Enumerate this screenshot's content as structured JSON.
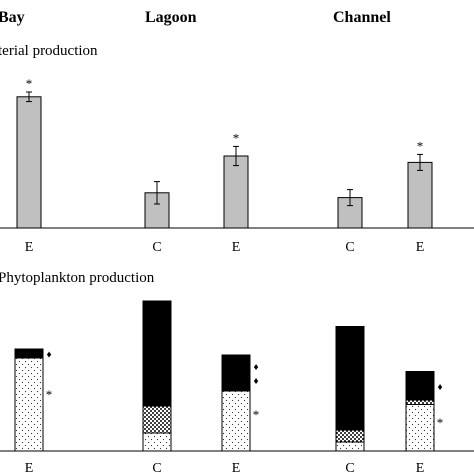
{
  "sites": [
    "Bay",
    "Lagoon",
    "Channel"
  ],
  "chart_data": [
    {
      "type": "bar",
      "title": "terial production",
      "ylim": [
        0,
        100
      ],
      "bars": [
        {
          "site": "Bay",
          "category": "E",
          "value": 82,
          "err": 3,
          "mark": "*"
        },
        {
          "site": "Lagoon",
          "category": "C",
          "value": 22,
          "err": 7,
          "mark": ""
        },
        {
          "site": "Lagoon",
          "category": "E",
          "value": 45,
          "err": 6,
          "mark": "*"
        },
        {
          "site": "Channel",
          "category": "C",
          "value": 19,
          "err": 5,
          "mark": ""
        },
        {
          "site": "Channel",
          "category": "E",
          "value": 41,
          "err": 5,
          "mark": "*"
        }
      ]
    },
    {
      "type": "stacked-bar",
      "title": "Phytoplankton production",
      "ylim": [
        0,
        100
      ],
      "components": [
        {
          "key": "fine-dotted",
          "color": "#ffffff"
        },
        {
          "key": "coarse-dotted",
          "color": "#ffffff"
        },
        {
          "key": "solid",
          "color": "#000000"
        }
      ],
      "bars": [
        {
          "site": "Bay",
          "category": "E",
          "values": [
            62,
            0,
            6
          ],
          "marks": [
            "*",
            "",
            "♦"
          ]
        },
        {
          "site": "Lagoon",
          "category": "C",
          "values": [
            12,
            18,
            70
          ],
          "marks": [
            "",
            "",
            ""
          ]
        },
        {
          "site": "Lagoon",
          "category": "E",
          "values": [
            40,
            0,
            24
          ],
          "marks": [
            "*",
            "",
            "♦♦"
          ]
        },
        {
          "site": "Channel",
          "category": "C",
          "values": [
            6,
            8,
            69
          ],
          "marks": [
            "",
            "",
            ""
          ]
        },
        {
          "site": "Channel",
          "category": "E",
          "values": [
            31,
            3,
            19
          ],
          "marks": [
            "*",
            "",
            "♦"
          ]
        }
      ]
    }
  ]
}
